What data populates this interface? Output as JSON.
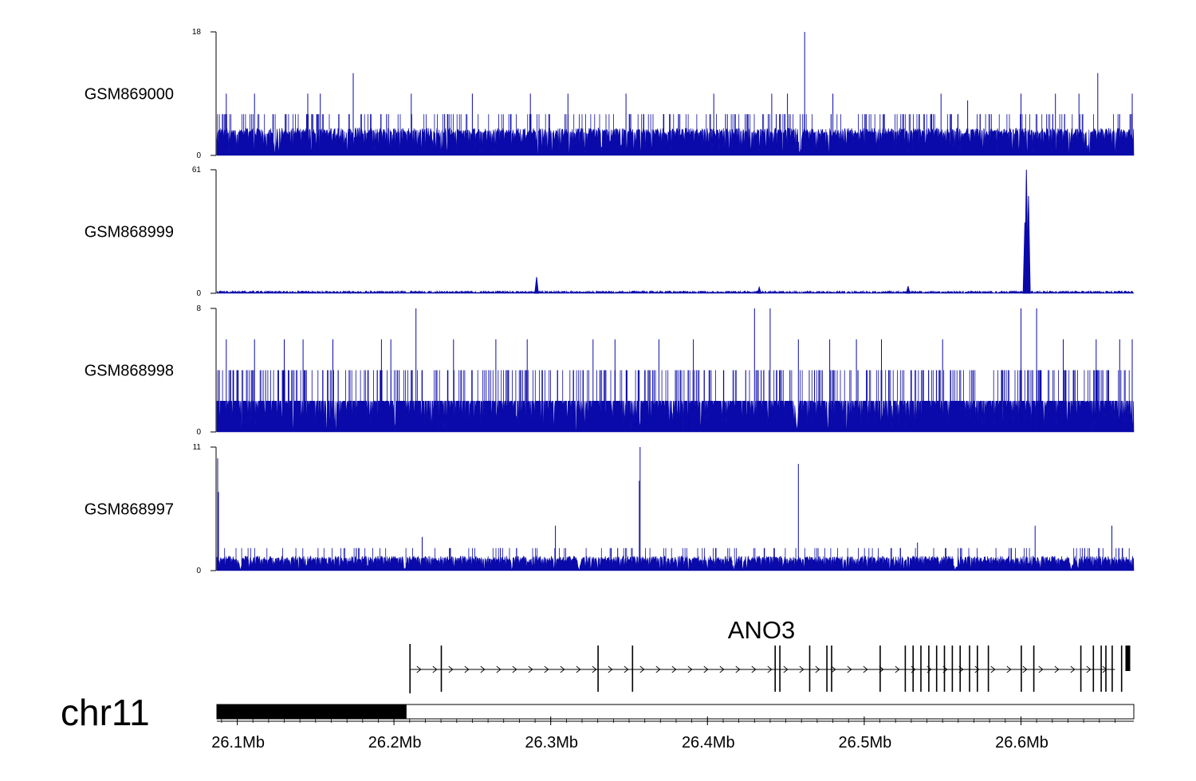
{
  "chart_data": {
    "type": "area",
    "title": "",
    "chromosome": "chr11",
    "gene": {
      "name": "ANO3",
      "strand": "+",
      "start_mb": 26.21,
      "end_mb": 26.66,
      "exons_mb": [
        26.2102,
        26.2302,
        26.3302,
        26.3522,
        26.4432,
        26.4462,
        26.4652,
        26.4762,
        26.4792,
        26.5102,
        26.5262,
        26.5312,
        26.5362,
        26.5412,
        26.5462,
        26.5512,
        26.5562,
        26.5612,
        26.5672,
        26.5722,
        26.5792,
        26.6002,
        26.6082,
        26.6382,
        26.6462,
        26.6512,
        26.6542,
        26.6582,
        26.6642,
        26.6682
      ]
    },
    "x_axis": {
      "range_mb": [
        26.087,
        26.672
      ],
      "ticks_mb": [
        26.1,
        26.2,
        26.3,
        26.4,
        26.5,
        26.6
      ],
      "tick_labels": [
        "26.1Mb",
        "26.2Mb",
        "26.3Mb",
        "26.4Mb",
        "26.5Mb",
        "26.6Mb"
      ]
    },
    "ideogram": {
      "highlight_mb": [
        26.087,
        26.208
      ]
    },
    "series": [
      {
        "name": "GSM869000",
        "ylim": [
          0,
          18
        ],
        "ymax_label": "18",
        "ymin_label": "0",
        "baseline": 3,
        "base_max": 4,
        "extra_level": 6,
        "peaks": [
          [
            26.174,
            12
          ],
          [
            26.093,
            9
          ],
          [
            26.111,
            9
          ],
          [
            26.145,
            9
          ],
          [
            26.153,
            9
          ],
          [
            26.211,
            9
          ],
          [
            26.25,
            9
          ],
          [
            26.287,
            9
          ],
          [
            26.311,
            9
          ],
          [
            26.348,
            9
          ],
          [
            26.404,
            9
          ],
          [
            26.441,
            9
          ],
          [
            26.451,
            9
          ],
          [
            26.462,
            18
          ],
          [
            26.48,
            9
          ],
          [
            26.549,
            9
          ],
          [
            26.566,
            8
          ],
          [
            26.6,
            9
          ],
          [
            26.622,
            9
          ],
          [
            26.637,
            9
          ],
          [
            26.649,
            12
          ],
          [
            26.671,
            9
          ]
        ],
        "dips_mb": [
          26.124,
          26.459
        ]
      },
      {
        "name": "GSM868999",
        "ylim": [
          0,
          61
        ],
        "ymax_label": "61",
        "ymin_label": "0",
        "baseline": 0.4,
        "base_max": 1.2,
        "extra_level": 0,
        "peaks": [
          [
            26.291,
            8
          ],
          [
            26.433,
            3
          ],
          [
            26.528,
            3.5
          ],
          [
            26.6035,
            61
          ],
          [
            26.6048,
            48
          ],
          [
            26.6025,
            35
          ]
        ],
        "dips_mb": []
      },
      {
        "name": "GSM868998",
        "ylim": [
          0,
          8
        ],
        "ymax_label": "8",
        "ymin_label": "0",
        "baseline": 2,
        "base_max": 2,
        "extra_level": 4,
        "peaks": [
          [
            26.214,
            8
          ],
          [
            26.093,
            6
          ],
          [
            26.111,
            6
          ],
          [
            26.13,
            6
          ],
          [
            26.142,
            6
          ],
          [
            26.161,
            6
          ],
          [
            26.192,
            6
          ],
          [
            26.198,
            6
          ],
          [
            26.238,
            6
          ],
          [
            26.265,
            6
          ],
          [
            26.285,
            6
          ],
          [
            26.327,
            6
          ],
          [
            26.341,
            6
          ],
          [
            26.369,
            6
          ],
          [
            26.391,
            6
          ],
          [
            26.43,
            8
          ],
          [
            26.44,
            8
          ],
          [
            26.458,
            6
          ],
          [
            26.478,
            6
          ],
          [
            26.495,
            6
          ],
          [
            26.511,
            6
          ],
          [
            26.55,
            6
          ],
          [
            26.6,
            8
          ],
          [
            26.61,
            8
          ],
          [
            26.627,
            6
          ],
          [
            26.648,
            6
          ],
          [
            26.663,
            6
          ],
          [
            26.671,
            6
          ]
        ],
        "dips_mb": [
          26.457
        ]
      },
      {
        "name": "GSM868997",
        "ylim": [
          0,
          11
        ],
        "ymax_label": "11",
        "ymin_label": "0",
        "baseline": 0.8,
        "base_max": 1.3,
        "extra_level": 2,
        "peaks": [
          [
            26.0875,
            10
          ],
          [
            26.088,
            7
          ],
          [
            26.357,
            11
          ],
          [
            26.3565,
            8
          ],
          [
            26.458,
            9.5
          ],
          [
            26.303,
            4
          ],
          [
            26.609,
            4
          ],
          [
            26.658,
            4
          ],
          [
            26.218,
            3
          ],
          [
            26.534,
            2.5
          ]
        ],
        "dips_mb": [
          26.102,
          26.207,
          26.318,
          26.417,
          26.558,
          26.632
        ]
      }
    ]
  }
}
